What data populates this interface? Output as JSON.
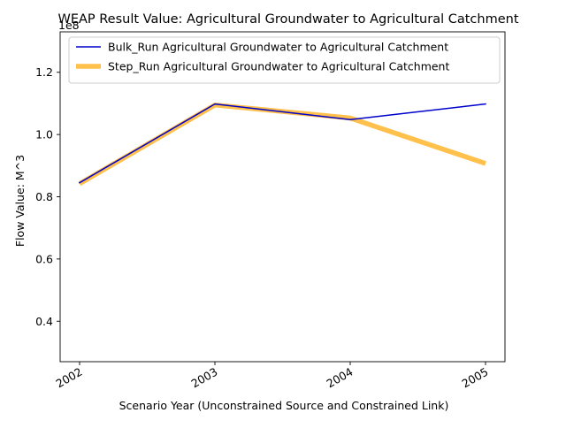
{
  "chart_data": {
    "type": "line",
    "title": "WEAP Result Value: Agricultural Groundwater to Agricultural Catchment",
    "xlabel": "Scenario Year (Unconstrained Source and Constrained Link)",
    "ylabel": "Flow Value: M^3",
    "offset_label": "1e8",
    "x": [
      "2002",
      "2003",
      "2004",
      "2005"
    ],
    "ylim": [
      0.27,
      1.33
    ],
    "yticks": [
      0.4,
      0.6,
      0.8,
      1.0,
      1.2
    ],
    "ytick_labels": [
      "0.4",
      "0.6",
      "0.8",
      "1.0",
      "1.2"
    ],
    "grid": false,
    "legend_position": "top-right",
    "series": [
      {
        "name": "Bulk_Run Agricultural Groundwater to Agricultural Catchment",
        "values": [
          0.845,
          1.098,
          1.048,
          1.098
        ],
        "color": "#0000cc",
        "style": "thin"
      },
      {
        "name": "Step_Run Agricultural Groundwater to Agricultural Catchment",
        "values": [
          0.842,
          1.095,
          1.053,
          0.907
        ],
        "color": "#ffa500",
        "style": "thick"
      }
    ]
  }
}
